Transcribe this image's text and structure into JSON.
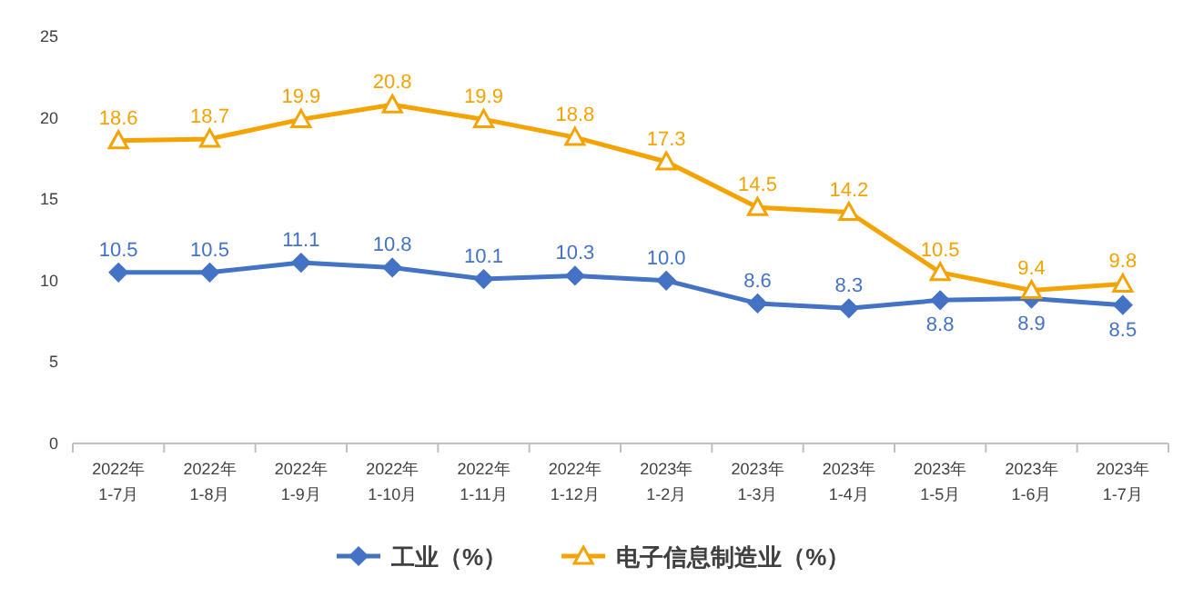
{
  "chart_data": {
    "type": "line",
    "categories": [
      "2022年\n1-7月",
      "2022年\n1-8月",
      "2022年\n1-9月",
      "2022年\n1-10月",
      "2022年\n1-11月",
      "2022年\n1-12月",
      "2023年\n1-2月",
      "2023年\n1-3月",
      "2023年\n1-4月",
      "2023年\n1-5月",
      "2023年\n1-6月",
      "2023年\n1-7月"
    ],
    "series": [
      {
        "name": "工业（%）",
        "color": "#4472c4",
        "marker": "diamond",
        "values": [
          10.5,
          10.5,
          11.1,
          10.8,
          10.1,
          10.3,
          10.0,
          8.6,
          8.3,
          8.8,
          8.9,
          8.5
        ],
        "value_labels": [
          "10.5",
          "10.5",
          "11.1",
          "10.8",
          "10.1",
          "10.3",
          "10.0",
          "8.6",
          "8.3",
          "8.8",
          "8.9",
          "8.5"
        ]
      },
      {
        "name": "电子信息制造业（%）",
        "color": "#f4a300",
        "marker": "triangle",
        "values": [
          18.6,
          18.7,
          19.9,
          20.8,
          19.9,
          18.8,
          17.3,
          14.5,
          14.2,
          10.5,
          9.4,
          9.8
        ],
        "value_labels": [
          "18.6",
          "18.7",
          "19.9",
          "20.8",
          "19.9",
          "18.8",
          "17.3",
          "14.5",
          "14.2",
          "10.5",
          "9.4",
          "9.8"
        ]
      }
    ],
    "ylim": [
      0,
      25
    ],
    "yticks": [
      0,
      5,
      10,
      15,
      20,
      25
    ],
    "legend": "bottom",
    "grid": false
  }
}
